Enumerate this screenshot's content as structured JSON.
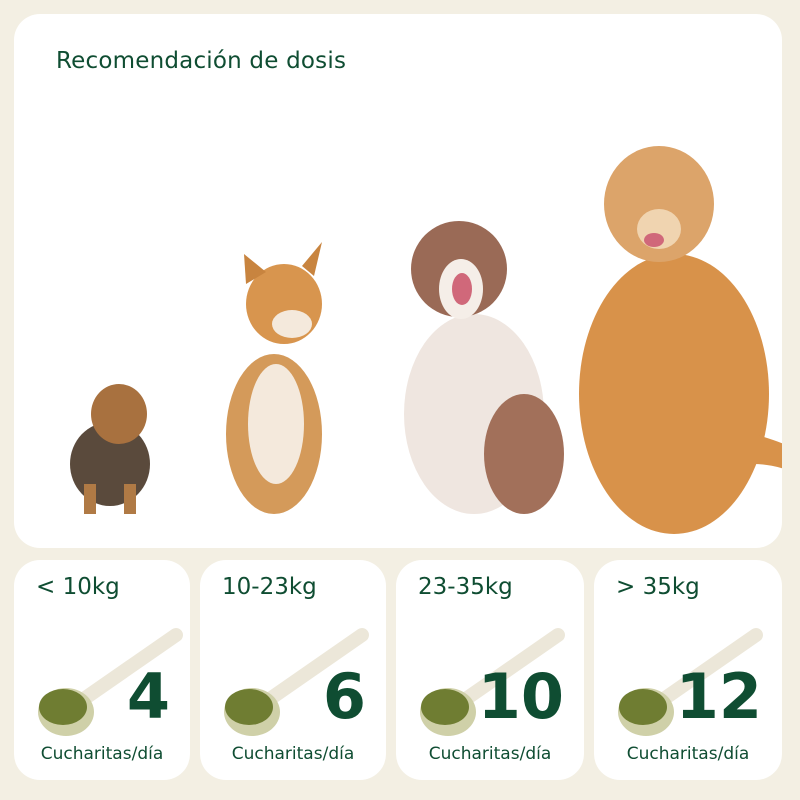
{
  "header": {
    "title": "Recomendación de dosis"
  },
  "colors": {
    "brand_green": "#0f4d32",
    "background": "#f3efe3",
    "powder": "#6f7d32"
  },
  "dosage": [
    {
      "weight": "< 10kg",
      "amount": "4",
      "unit": "Cucharitas/día",
      "icon": "scoop-icon"
    },
    {
      "weight": "10-23kg",
      "amount": "6",
      "unit": "Cucharitas/día",
      "icon": "scoop-icon"
    },
    {
      "weight": "23-35kg",
      "amount": "10",
      "unit": "Cucharitas/día",
      "icon": "scoop-icon"
    },
    {
      "weight": "> 35kg",
      "amount": "12",
      "unit": "Cucharitas/día",
      "icon": "scoop-icon"
    }
  ]
}
